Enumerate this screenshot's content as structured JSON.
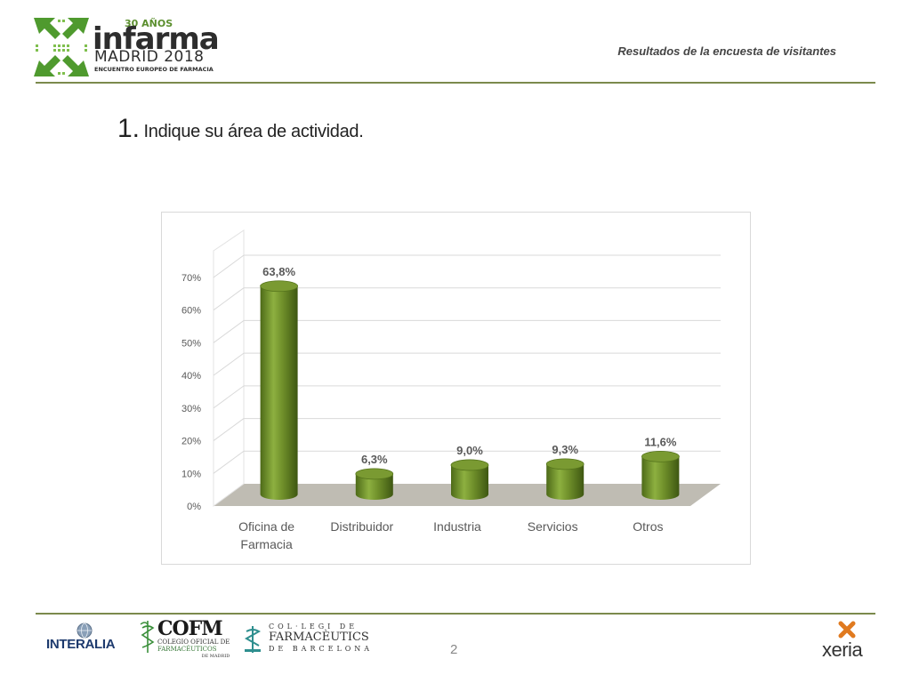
{
  "header": {
    "logo": {
      "anos": "30 AÑOS",
      "name": "infarma",
      "city": "MADRID 2018",
      "subtitle": "ENCUENTRO EUROPEO DE FARMACIA"
    },
    "survey_title": "Resultados de la encuesta de visitantes"
  },
  "question": {
    "number": "1.",
    "text": "Indique su área de actividad."
  },
  "chart_data": {
    "type": "bar",
    "categories": [
      "Oficina de Farmacia",
      "Distribuidor",
      "Industria",
      "Servicios",
      "Otros"
    ],
    "values": [
      63.8,
      6.3,
      9.0,
      9.3,
      11.6
    ],
    "data_labels": [
      "63,8%",
      "6,3%",
      "9,0%",
      "9,3%",
      "11,6%"
    ],
    "yticks": [
      "0%",
      "10%",
      "20%",
      "30%",
      "40%",
      "50%",
      "60%",
      "70%"
    ],
    "ylim": [
      0,
      70
    ],
    "grid": true,
    "style": "3d-cylinder",
    "bar_color": "#6f8f2a",
    "floor_color": "#bfbcb3"
  },
  "footer": {
    "page_number": "2",
    "logos": {
      "interalia": "INTERALIA",
      "cofm": "COFM",
      "cofm_sub1": "COLEGIO OFICIAL DE",
      "cofm_sub2": "FARMACÉUTICOS",
      "cofm_sub3": "DE MADRID",
      "colegi_l1": "COL·LEGI DE",
      "colegi_l2": "FARMACÈUTICS",
      "colegi_l3": "DE BARCELONA",
      "xeria": "xeria"
    }
  },
  "colors": {
    "accent_line": "#7b8a4d",
    "logo_green": "#4f9a2e"
  }
}
